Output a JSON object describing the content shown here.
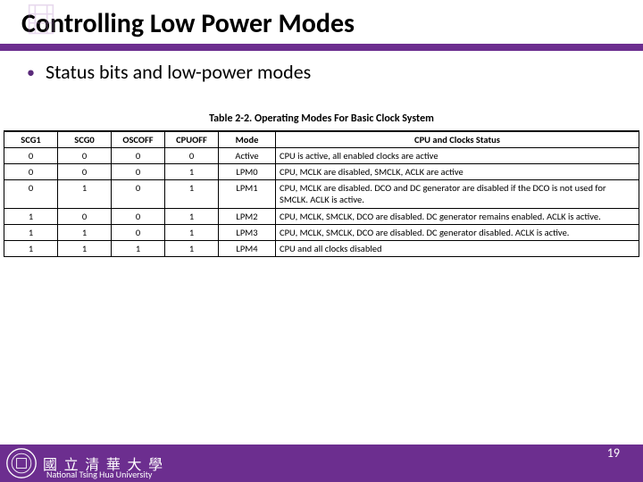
{
  "title": "Controlling Low Power Modes",
  "bullet": "Status bits and low-power modes",
  "table": {
    "caption": "Table 2-2. Operating Modes For Basic Clock System",
    "columns": [
      "SCG1",
      "SCG0",
      "OSCOFF",
      "CPUOFF",
      "Mode",
      "CPU and Clocks Status"
    ],
    "col_align": [
      "c",
      "c",
      "c",
      "c",
      "c",
      "status"
    ],
    "col_widths": [
      "60px",
      "60px",
      "60px",
      "60px",
      "64px",
      "auto"
    ],
    "rows": [
      [
        "0",
        "0",
        "0",
        "0",
        "Active",
        "CPU is active, all enabled clocks are active"
      ],
      [
        "0",
        "0",
        "0",
        "1",
        "LPM0",
        "CPU, MCLK are disabled, SMCLK, ACLK are active"
      ],
      [
        "0",
        "1",
        "0",
        "1",
        "LPM1",
        "CPU, MCLK are disabled. DCO and DC generator are disabled if the DCO is not used for SMCLK. ACLK is active."
      ],
      [
        "1",
        "0",
        "0",
        "1",
        "LPM2",
        "CPU, MCLK, SMCLK, DCO are disabled. DC generator remains enabled. ACLK is active."
      ],
      [
        "1",
        "1",
        "0",
        "1",
        "LPM3",
        "CPU, MCLK, SMCLK, DCO are disabled. DC generator disabled. ACLK is active."
      ],
      [
        "1",
        "1",
        "1",
        "1",
        "LPM4",
        "CPU and all clocks disabled"
      ]
    ],
    "header_fontsize": 10.5,
    "cell_fontsize": 10.5,
    "border_color": "#000000"
  },
  "footer": {
    "cn": "國 立 清 華 大 學",
    "en": "National Tsing Hua University",
    "page": "19"
  },
  "colors": {
    "purple": "#6c2e8f",
    "bg": "#ffffff"
  }
}
